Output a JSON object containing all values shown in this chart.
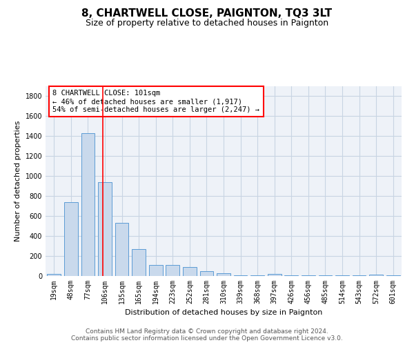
{
  "title": "8, CHARTWELL CLOSE, PAIGNTON, TQ3 3LT",
  "subtitle": "Size of property relative to detached houses in Paignton",
  "xlabel": "Distribution of detached houses by size in Paignton",
  "ylabel": "Number of detached properties",
  "bar_color": "#c9d9ec",
  "bar_edge_color": "#5b9bd5",
  "grid_color": "#c8d4e3",
  "bg_color": "#eef2f8",
  "categories": [
    "19sqm",
    "48sqm",
    "77sqm",
    "106sqm",
    "135sqm",
    "165sqm",
    "194sqm",
    "223sqm",
    "252sqm",
    "281sqm",
    "310sqm",
    "339sqm",
    "368sqm",
    "397sqm",
    "426sqm",
    "456sqm",
    "485sqm",
    "514sqm",
    "543sqm",
    "572sqm",
    "601sqm"
  ],
  "values": [
    20,
    740,
    1430,
    940,
    530,
    270,
    110,
    110,
    90,
    45,
    25,
    5,
    5,
    20,
    5,
    5,
    5,
    5,
    5,
    15,
    5
  ],
  "ylim": [
    0,
    1900
  ],
  "yticks": [
    0,
    200,
    400,
    600,
    800,
    1000,
    1200,
    1400,
    1600,
    1800
  ],
  "annotation_text": "8 CHARTWELL CLOSE: 101sqm\n← 46% of detached houses are smaller (1,917)\n54% of semi-detached houses are larger (2,247) →",
  "annotation_box_color": "white",
  "annotation_box_edge_color": "red",
  "vline_color": "red",
  "vline_x": 2.88,
  "footer_text": "Contains HM Land Registry data © Crown copyright and database right 2024.\nContains public sector information licensed under the Open Government Licence v3.0.",
  "title_fontsize": 11,
  "subtitle_fontsize": 9,
  "axis_label_fontsize": 8,
  "tick_fontsize": 7,
  "annotation_fontsize": 7.5,
  "footer_fontsize": 6.5
}
